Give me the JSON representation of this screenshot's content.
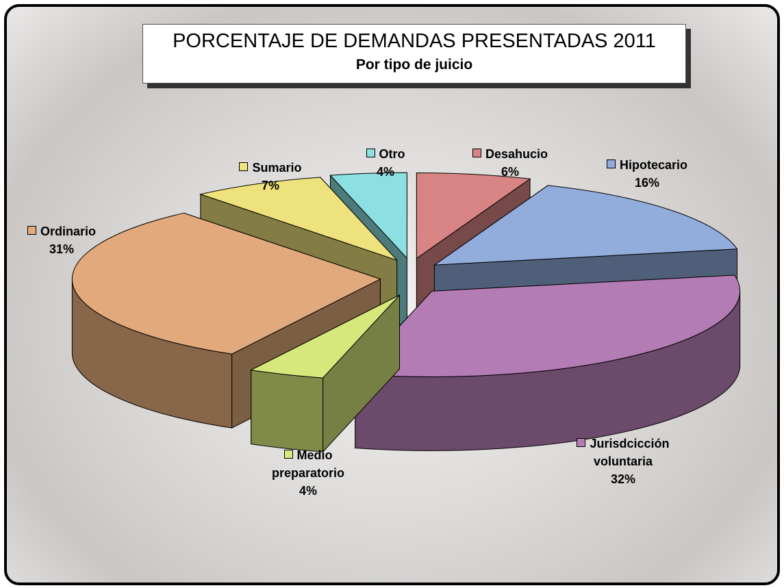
{
  "chart_data": {
    "type": "pie3d",
    "title": "PORCENTAJE DE DEMANDAS PRESENTADAS 2011",
    "subtitle": "Por tipo de juicio",
    "categories": [
      "Desahucio",
      "Hipotecario",
      "Jurisdcicción voluntaria",
      "Medio preparatorio",
      "Ordinario",
      "Sumario",
      "Otro"
    ],
    "values": [
      6,
      16,
      32,
      4,
      31,
      7,
      4
    ],
    "value_labels": [
      "6%",
      "16%",
      "32%",
      "4%",
      "31%",
      "7%",
      "4%"
    ],
    "colors": [
      "#d98484",
      "#92acdc",
      "#b47cb4",
      "#d6e87c",
      "#e2aa7c",
      "#eee27c",
      "#8ce0e2"
    ]
  }
}
